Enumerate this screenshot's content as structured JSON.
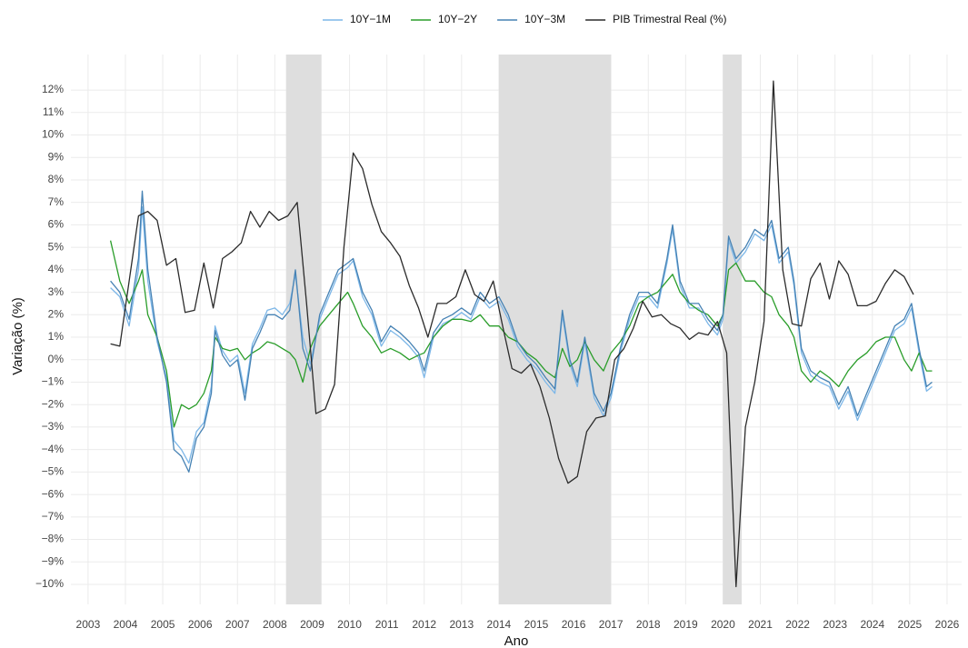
{
  "chart_data": {
    "type": "line",
    "x_label": "Ano",
    "y_label": "Variação (%)",
    "xlim": [
      2002.54,
      2026.39
    ],
    "ylim": [
      -10.89,
      13.58
    ],
    "xticks": [
      2003,
      2004,
      2005,
      2006,
      2007,
      2008,
      2009,
      2010,
      2011,
      2012,
      2013,
      2014,
      2015,
      2016,
      2017,
      2018,
      2019,
      2020,
      2021,
      2022,
      2023,
      2024,
      2025,
      2026
    ],
    "yticks": [
      {
        "value": -10,
        "label": "−10%"
      },
      {
        "value": -9,
        "label": "−9%"
      },
      {
        "value": -8,
        "label": "−8%"
      },
      {
        "value": -7,
        "label": "−7%"
      },
      {
        "value": -6,
        "label": "−6%"
      },
      {
        "value": -5,
        "label": "−5%"
      },
      {
        "value": -4,
        "label": "−4%"
      },
      {
        "value": -3,
        "label": "−3%"
      },
      {
        "value": -2,
        "label": "−2%"
      },
      {
        "value": -1,
        "label": "−1%"
      },
      {
        "value": 0,
        "label": "0%"
      },
      {
        "value": 1,
        "label": "1%"
      },
      {
        "value": 2,
        "label": "2%"
      },
      {
        "value": 3,
        "label": "3%"
      },
      {
        "value": 4,
        "label": "4%"
      },
      {
        "value": 5,
        "label": "5%"
      },
      {
        "value": 6,
        "label": "6%"
      },
      {
        "value": 7,
        "label": "7%"
      },
      {
        "value": 8,
        "label": "8%"
      },
      {
        "value": 9,
        "label": "9%"
      },
      {
        "value": 10,
        "label": "10%"
      },
      {
        "value": 11,
        "label": "11%"
      },
      {
        "value": 12,
        "label": "12%"
      }
    ],
    "grid": true,
    "legend": "top",
    "shaded_regions": [
      [
        2008.3,
        2009.25
      ],
      [
        2014.0,
        2017.0
      ],
      [
        2020.0,
        2020.5
      ]
    ],
    "shade_color": "#dedede",
    "x": [
      2003.6,
      2003.85,
      2004.1,
      2004.35,
      2004.45,
      2004.6,
      2004.85,
      2005.1,
      2005.3,
      2005.5,
      2005.7,
      2005.9,
      2006.1,
      2006.3,
      2006.4,
      2006.6,
      2006.8,
      2007.0,
      2007.2,
      2007.4,
      2007.6,
      2007.8,
      2008.0,
      2008.2,
      2008.4,
      2008.55,
      2008.75,
      2008.95,
      2009.2,
      2009.45,
      2009.7,
      2009.95,
      2010.1,
      2010.35,
      2010.6,
      2010.85,
      2011.1,
      2011.35,
      2011.6,
      2011.85,
      2012.0,
      2012.25,
      2012.5,
      2012.75,
      2013.0,
      2013.25,
      2013.5,
      2013.75,
      2014.0,
      2014.25,
      2014.5,
      2014.75,
      2015.0,
      2015.25,
      2015.5,
      2015.7,
      2015.9,
      2016.1,
      2016.3,
      2016.55,
      2016.8,
      2017.0,
      2017.25,
      2017.5,
      2017.75,
      2018.0,
      2018.25,
      2018.5,
      2018.65,
      2018.85,
      2019.1,
      2019.35,
      2019.6,
      2019.85,
      2020.0,
      2020.15,
      2020.35,
      2020.6,
      2020.85,
      2021.1,
      2021.3,
      2021.5,
      2021.75,
      2021.9,
      2022.1,
      2022.35,
      2022.6,
      2022.85,
      2023.1,
      2023.35,
      2023.6,
      2023.85,
      2024.1,
      2024.35,
      2024.6,
      2024.85,
      2025.05,
      2025.25,
      2025.45,
      2025.6
    ],
    "series": [
      {
        "name": "10Y−1M",
        "color": "#7db7e8",
        "values": [
          3.2,
          2.8,
          1.5,
          4.0,
          6.8,
          3.5,
          0.8,
          -0.8,
          -3.6,
          -4.0,
          -4.6,
          -3.2,
          -2.8,
          -1.2,
          1.5,
          0.4,
          -0.1,
          0.2,
          -1.5,
          0.7,
          1.4,
          2.2,
          2.3,
          2.0,
          2.5,
          3.8,
          1.0,
          -0.2,
          1.8,
          2.8,
          3.8,
          4.1,
          4.4,
          2.8,
          2.0,
          0.6,
          1.3,
          1.0,
          0.6,
          0.1,
          -0.8,
          1.0,
          1.6,
          1.8,
          2.1,
          1.8,
          2.8,
          2.3,
          2.6,
          1.8,
          0.6,
          0.0,
          -0.4,
          -1.0,
          -1.5,
          2.0,
          -0.2,
          -1.2,
          0.8,
          -1.7,
          -2.5,
          -1.7,
          0.3,
          1.8,
          2.8,
          2.8,
          2.3,
          4.3,
          5.8,
          3.3,
          2.3,
          2.3,
          1.6,
          1.1,
          1.8,
          5.3,
          4.3,
          4.8,
          5.6,
          5.3,
          6.0,
          4.3,
          4.8,
          3.3,
          0.3,
          -0.7,
          -1.0,
          -1.2,
          -2.2,
          -1.4,
          -2.7,
          -1.7,
          -0.7,
          0.3,
          1.3,
          1.6,
          2.3,
          0.3,
          -1.4,
          -1.2
        ]
      },
      {
        "name": "10Y−2Y",
        "color": "#2a9d2a",
        "values": [
          5.3,
          3.5,
          2.5,
          3.5,
          4.0,
          2.0,
          1.0,
          -0.5,
          -3.0,
          -2.0,
          -2.2,
          -2.0,
          -1.5,
          -0.5,
          1.0,
          0.5,
          0.4,
          0.5,
          0.0,
          0.3,
          0.5,
          0.8,
          0.7,
          0.5,
          0.3,
          0.0,
          -1.0,
          0.5,
          1.5,
          2.0,
          2.5,
          3.0,
          2.5,
          1.5,
          1.0,
          0.3,
          0.5,
          0.3,
          0.0,
          0.2,
          0.3,
          1.0,
          1.5,
          1.8,
          1.8,
          1.7,
          2.0,
          1.5,
          1.5,
          1.0,
          0.8,
          0.3,
          0.0,
          -0.5,
          -0.8,
          0.5,
          -0.3,
          0.0,
          0.8,
          0.0,
          -0.5,
          0.3,
          0.8,
          1.5,
          2.5,
          2.8,
          3.0,
          3.5,
          3.8,
          3.0,
          2.5,
          2.2,
          2.0,
          1.5,
          2.0,
          4.0,
          4.3,
          3.5,
          3.5,
          3.0,
          2.8,
          2.0,
          1.5,
          1.0,
          -0.5,
          -1.0,
          -0.5,
          -0.8,
          -1.2,
          -0.5,
          0.0,
          0.3,
          0.8,
          1.0,
          1.0,
          0.0,
          -0.5,
          0.3,
          -0.5,
          -0.5
        ]
      },
      {
        "name": "10Y−3M",
        "color": "#4682b4",
        "values": [
          3.5,
          3.0,
          1.8,
          4.5,
          7.5,
          4.0,
          1.0,
          -1.0,
          -4.0,
          -4.3,
          -5.0,
          -3.5,
          -3.0,
          -1.5,
          1.3,
          0.2,
          -0.3,
          0.0,
          -1.8,
          0.5,
          1.2,
          2.0,
          2.0,
          1.8,
          2.2,
          4.0,
          0.5,
          -0.5,
          2.0,
          3.0,
          4.0,
          4.3,
          4.5,
          3.0,
          2.2,
          0.8,
          1.5,
          1.2,
          0.8,
          0.3,
          -0.5,
          1.2,
          1.8,
          2.0,
          2.3,
          2.0,
          3.0,
          2.5,
          2.8,
          2.0,
          0.8,
          0.2,
          -0.2,
          -0.8,
          -1.3,
          2.2,
          0.0,
          -1.0,
          1.0,
          -1.5,
          -2.3,
          -1.5,
          0.5,
          2.0,
          3.0,
          3.0,
          2.5,
          4.5,
          6.0,
          3.5,
          2.5,
          2.5,
          1.8,
          1.3,
          2.0,
          5.5,
          4.5,
          5.0,
          5.8,
          5.5,
          6.2,
          4.5,
          5.0,
          3.5,
          0.5,
          -0.5,
          -0.8,
          -1.0,
          -2.0,
          -1.2,
          -2.5,
          -1.5,
          -0.5,
          0.5,
          1.5,
          1.8,
          2.5,
          0.5,
          -1.2,
          -1.0
        ]
      },
      {
        "name": "PIB Trimestral Real (%)",
        "color": "#2b2b2b",
        "x": [
          2003.6,
          2003.85,
          2004.1,
          2004.35,
          2004.6,
          2004.85,
          2005.1,
          2005.35,
          2005.6,
          2005.85,
          2006.1,
          2006.35,
          2006.6,
          2006.85,
          2007.1,
          2007.35,
          2007.6,
          2007.85,
          2008.1,
          2008.35,
          2008.6,
          2008.85,
          2009.1,
          2009.35,
          2009.6,
          2009.85,
          2010.1,
          2010.35,
          2010.6,
          2010.85,
          2011.1,
          2011.35,
          2011.6,
          2011.85,
          2012.1,
          2012.35,
          2012.6,
          2012.85,
          2013.1,
          2013.35,
          2013.6,
          2013.85,
          2014.1,
          2014.35,
          2014.6,
          2014.85,
          2015.1,
          2015.35,
          2015.6,
          2015.85,
          2016.1,
          2016.35,
          2016.6,
          2016.85,
          2017.1,
          2017.35,
          2017.6,
          2017.85,
          2018.1,
          2018.35,
          2018.6,
          2018.85,
          2019.1,
          2019.35,
          2019.6,
          2019.85,
          2020.1,
          2020.35,
          2020.6,
          2020.85,
          2021.1,
          2021.35,
          2021.6,
          2021.85,
          2022.1,
          2022.35,
          2022.6,
          2022.85,
          2023.1,
          2023.35,
          2023.6,
          2023.85,
          2024.1,
          2024.35,
          2024.6,
          2024.85,
          2025.1
        ],
        "values": [
          0.7,
          0.6,
          3.5,
          6.4,
          6.6,
          6.2,
          4.2,
          4.5,
          2.1,
          2.2,
          4.3,
          2.3,
          4.5,
          4.8,
          5.2,
          6.6,
          5.9,
          6.6,
          6.2,
          6.4,
          7.0,
          2.5,
          -2.4,
          -2.2,
          -1.1,
          5.0,
          9.2,
          8.5,
          6.9,
          5.7,
          5.2,
          4.6,
          3.3,
          2.3,
          1.0,
          2.5,
          2.5,
          2.8,
          4.0,
          2.9,
          2.6,
          3.5,
          1.5,
          -0.4,
          -0.6,
          -0.2,
          -1.2,
          -2.6,
          -4.4,
          -5.5,
          -5.2,
          -3.2,
          -2.6,
          -2.5,
          0.0,
          0.5,
          1.4,
          2.6,
          1.9,
          2.0,
          1.6,
          1.4,
          0.9,
          1.2,
          1.1,
          1.7,
          0.3,
          -10.1,
          -3.0,
          -1.0,
          1.7,
          12.4,
          4.0,
          1.6,
          1.5,
          3.6,
          4.3,
          2.7,
          4.4,
          3.8,
          2.4,
          2.4,
          2.6,
          3.4,
          4.0,
          3.7,
          2.9
        ]
      }
    ]
  }
}
